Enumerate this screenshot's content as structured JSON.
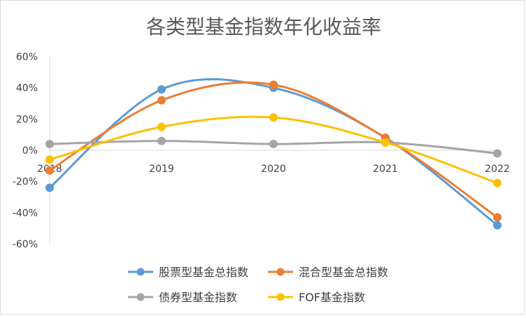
{
  "chart_data": {
    "type": "line",
    "title": "各类型基金指数年化收益率",
    "xlabel": "",
    "ylabel": "",
    "categories": [
      "2018",
      "2019",
      "2020",
      "2021",
      "2022"
    ],
    "ylim": [
      -0.6,
      0.6
    ],
    "yticks": [
      {
        "value": 0.6,
        "label": "60%"
      },
      {
        "value": 0.4,
        "label": "40%"
      },
      {
        "value": 0.2,
        "label": "20%"
      },
      {
        "value": 0.0,
        "label": "0%"
      },
      {
        "value": -0.2,
        "label": "-20%"
      },
      {
        "value": -0.4,
        "label": "-40%"
      },
      {
        "value": -0.6,
        "label": "-60%"
      }
    ],
    "grid": false,
    "smooth": true,
    "legend_position": "bottom",
    "series": [
      {
        "name": "股票型基金总指数",
        "color": "#5B9BD5",
        "values": [
          -0.24,
          0.39,
          0.4,
          0.08,
          -0.48
        ]
      },
      {
        "name": "混合型基金总指数",
        "color": "#ED7D31",
        "values": [
          -0.13,
          0.32,
          0.42,
          0.08,
          -0.43
        ]
      },
      {
        "name": "债券型基金指数",
        "color": "#A5A5A5",
        "values": [
          0.04,
          0.06,
          0.04,
          0.05,
          -0.02
        ]
      },
      {
        "name": "FOF基金指数",
        "color": "#FFC000",
        "values": [
          -0.06,
          0.15,
          0.21,
          0.05,
          -0.21
        ]
      }
    ]
  }
}
